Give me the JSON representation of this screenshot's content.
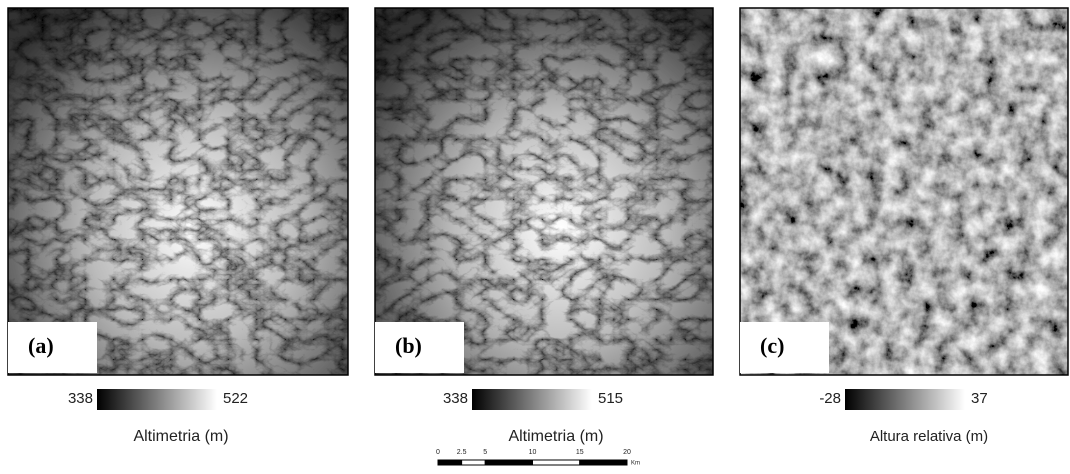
{
  "panels": [
    {
      "label": "(a)",
      "legend": {
        "min": 338,
        "max": 522,
        "title": "Altimetria (m)"
      }
    },
    {
      "label": "(b)",
      "legend": {
        "min": 338,
        "max": 515,
        "title": "Altimetria (m)"
      }
    },
    {
      "label": "(c)",
      "legend": {
        "min": -28,
        "max": 37,
        "title": "Altura relativa (m)"
      }
    }
  ],
  "scale_bar": {
    "ticks": [
      0,
      2.5,
      5,
      10,
      15,
      20
    ],
    "unit": "Km"
  }
}
